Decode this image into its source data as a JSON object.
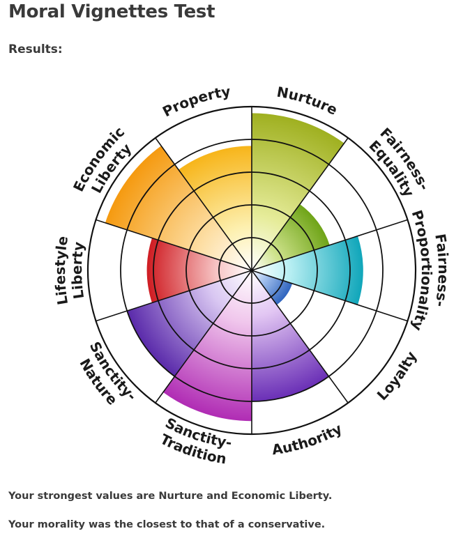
{
  "page": {
    "title": "Moral Vignettes Test",
    "results_label": "Results:",
    "summary_strongest": "Your strongest values are Nurture and Economic Liberty.",
    "summary_closest": "Your morality was the closest to that of a conservative."
  },
  "chart_data": {
    "type": "radial-bar",
    "scale": {
      "min": 0,
      "max": 5,
      "rings": 5
    },
    "categories": [
      {
        "label": [
          "Nurture"
        ],
        "value": 4.8,
        "color_light": "#e6ec9a",
        "color_dark": "#9fb020"
      },
      {
        "label": [
          "Fairness-",
          "Equality"
        ],
        "value": 2.5,
        "color_light": "#cfe38c",
        "color_dark": "#6fa418"
      },
      {
        "label": [
          "Fairness-",
          "Proportionality"
        ],
        "value": 3.4,
        "color_light": "#b6eef2",
        "color_dark": "#10a6ba"
      },
      {
        "label": [
          "Loyalty"
        ],
        "value": 1.3,
        "color_light": "#a7c4ef",
        "color_dark": "#2f64be"
      },
      {
        "label": [
          "Authority"
        ],
        "value": 4.0,
        "color_light": "#e2c6f3",
        "color_dark": "#6a2fb6"
      },
      {
        "label": [
          "Sanctity-",
          "Tradition"
        ],
        "value": 4.6,
        "color_light": "#f0c6ec",
        "color_dark": "#b02cb4"
      },
      {
        "label": [
          "Sanctity-",
          "Nature"
        ],
        "value": 4.0,
        "color_light": "#d9c7f2",
        "color_dark": "#5a2aaa"
      },
      {
        "label": [
          "Lifestyle",
          "Liberty"
        ],
        "value": 3.2,
        "color_light": "#f6c2c2",
        "color_dark": "#cf1c22"
      },
      {
        "label": [
          "Economic",
          "Liberty"
        ],
        "value": 4.7,
        "color_light": "#fde0a8",
        "color_dark": "#f59a10"
      },
      {
        "label": [
          "Property"
        ],
        "value": 3.8,
        "color_light": "#fdf0b0",
        "color_dark": "#f7b51a"
      }
    ]
  }
}
